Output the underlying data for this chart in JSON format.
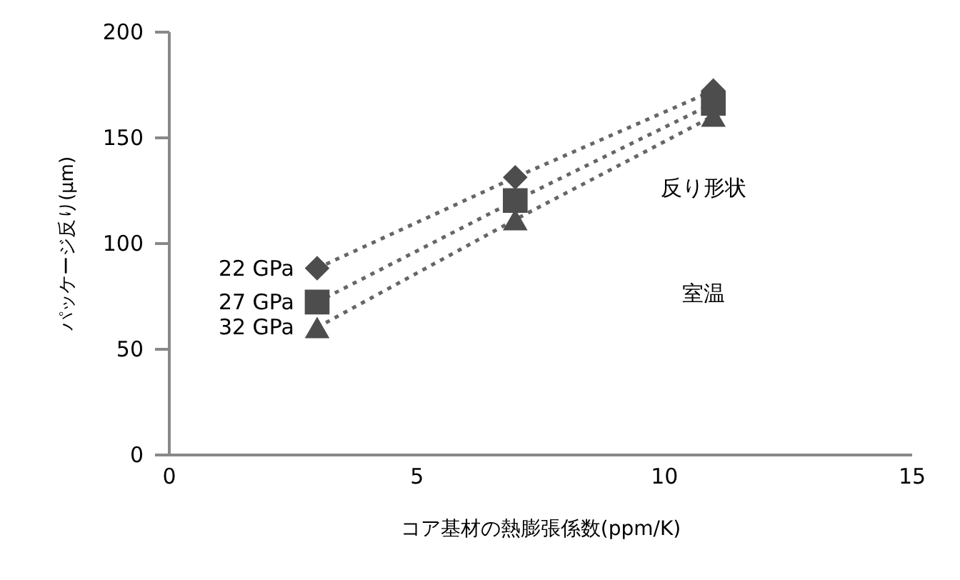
{
  "chart_data": {
    "type": "line",
    "xlabel": "コア基材の熱膨張係数(ppm/K)",
    "ylabel": "パッケージ反り(μm)",
    "x": [
      3,
      7,
      11
    ],
    "series": [
      {
        "name": "22 GPa",
        "color": "#4d4d4d",
        "values": [
          88,
          131,
          172
        ],
        "marker": "diamond"
      },
      {
        "name": "27 GPa",
        "color": "#4d4d4d",
        "values": [
          72,
          120,
          166
        ],
        "marker": "square"
      },
      {
        "name": "32 GPa",
        "color": "#4d4d4d",
        "values": [
          60,
          111,
          160
        ],
        "marker": "triangle"
      }
    ],
    "line_style": "dotted",
    "xlim": [
      0,
      15
    ],
    "xticks": [
      0,
      5,
      10,
      15
    ],
    "ylim": [
      0,
      200
    ],
    "yticks": [
      0,
      50,
      100,
      150,
      200
    ],
    "grid": false,
    "legend": false,
    "annotations": [
      "反り形状",
      "室温"
    ]
  }
}
